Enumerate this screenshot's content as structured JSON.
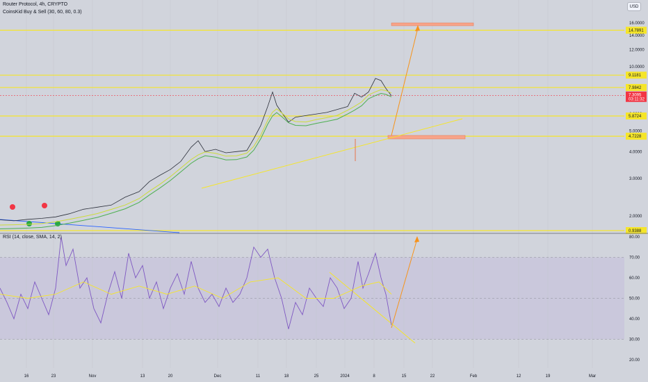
{
  "header": {
    "symbol_line": "Router Protocol, 4h, CRYPTO",
    "indicator_line": "CoinsKid Buy & Sell (30, 60, 80, 0.3)",
    "currency": "USD"
  },
  "colors": {
    "background": "#d1d4dc",
    "level_line": "#f5e52a",
    "level_tag_bg": "#f5e52a",
    "price_tag_bg": "#f23645",
    "rsi_line": "#7e57c2",
    "rsi_ma": "#f5e52a",
    "rsi_band": "#c7c3dc",
    "arrow": "#f7931a",
    "target_box": "#f7a48a",
    "ema_green": "#4caf50",
    "ema_light": "#cddc39",
    "trend_blue": "#2962ff",
    "sell_dot": "#f23645",
    "buy_dot": "#26a646"
  },
  "chart_data": [
    {
      "type": "line",
      "title": "",
      "subtitle": "",
      "xlabel": "",
      "ylabel": "",
      "x_ticks": [
        "16",
        "23",
        "Nov",
        "13",
        "20",
        "Dec",
        "11",
        "18",
        "25",
        "2024",
        "8",
        "15",
        "22",
        "Feb",
        "12",
        "19",
        "Mar"
      ],
      "y_scale": "log",
      "y_ticks": [
        2.0,
        3.0,
        4.0,
        5.0,
        6.0,
        7.0,
        8.0,
        10.0,
        12.0,
        14.0,
        16.0
      ],
      "y_tick_labels": [
        "2.0000",
        "3.0000",
        "4.0000",
        "5.0000",
        "6.0000",
        "7.0000",
        "8.0000",
        "10.0000",
        "12.0000",
        "14.0000",
        "16.0000"
      ],
      "levels": [
        {
          "value": 14.7891,
          "label": "14.7891"
        },
        {
          "value": 9.1181,
          "label": "9.1181"
        },
        {
          "value": 7.9842,
          "label": "7.9842"
        },
        {
          "value": 5.8724,
          "label": "5.8724"
        },
        {
          "value": 4.7228,
          "label": "4.7228"
        },
        {
          "value": 0.9388,
          "label": "0.9388"
        }
      ],
      "last_price": {
        "value": 7.3095,
        "label": "7.3095",
        "countdown": "03:11:32"
      },
      "series": [
        {
          "values": [
            [
              0,
              1.92
            ],
            [
              20,
              1.9
            ],
            [
              40,
              1.93
            ],
            [
              60,
              1.95
            ],
            [
              80,
              1.98
            ],
            [
              100,
              2.05
            ],
            [
              120,
              2.15
            ],
            [
              140,
              2.2
            ],
            [
              160,
              2.25
            ],
            [
              180,
              2.45
            ],
            [
              200,
              2.6
            ],
            [
              215,
              2.9
            ],
            [
              230,
              3.1
            ],
            [
              245,
              3.3
            ],
            [
              260,
              3.6
            ],
            [
              275,
              4.2
            ],
            [
              285,
              4.5
            ],
            [
              295,
              4.0
            ],
            [
              310,
              4.1
            ],
            [
              325,
              3.95
            ],
            [
              340,
              4.0
            ],
            [
              355,
              4.05
            ],
            [
              365,
              4.6
            ],
            [
              375,
              5.3
            ],
            [
              385,
              6.5
            ],
            [
              392,
              7.6
            ],
            [
              398,
              6.6
            ],
            [
              405,
              6.1
            ],
            [
              415,
              5.5
            ],
            [
              425,
              5.8
            ],
            [
              440,
              5.9
            ],
            [
              455,
              6.0
            ],
            [
              470,
              6.1
            ],
            [
              485,
              6.3
            ],
            [
              500,
              6.5
            ],
            [
              510,
              7.5
            ],
            [
              520,
              7.2
            ],
            [
              530,
              7.6
            ],
            [
              540,
              8.8
            ],
            [
              548,
              8.6
            ],
            [
              555,
              7.9
            ],
            [
              563,
              7.3
            ]
          ]
        }
      ]
    },
    {
      "type": "line",
      "title": "RSI (14, close, SMA, 14, 2)",
      "ylim": [
        15,
        82
      ],
      "y_ticks": [
        20.0,
        30.0,
        40.0,
        50.0,
        60.0,
        70.0,
        80.0
      ],
      "y_tick_labels": [
        "20.00",
        "30.00",
        "40.00",
        "50.00",
        "60.00",
        "70.00",
        "80.00"
      ],
      "bands": [
        30,
        50,
        70
      ],
      "series": [
        {
          "values": [
            [
              0,
              55
            ],
            [
              10,
              48
            ],
            [
              20,
              40
            ],
            [
              30,
              52
            ],
            [
              40,
              45
            ],
            [
              50,
              58
            ],
            [
              60,
              50
            ],
            [
              70,
              42
            ],
            [
              80,
              55
            ],
            [
              88,
              80
            ],
            [
              95,
              66
            ],
            [
              105,
              74
            ],
            [
              115,
              55
            ],
            [
              125,
              60
            ],
            [
              135,
              45
            ],
            [
              145,
              38
            ],
            [
              155,
              52
            ],
            [
              165,
              63
            ],
            [
              175,
              50
            ],
            [
              185,
              72
            ],
            [
              195,
              60
            ],
            [
              205,
              66
            ],
            [
              215,
              50
            ],
            [
              225,
              58
            ],
            [
              235,
              45
            ],
            [
              245,
              55
            ],
            [
              255,
              62
            ],
            [
              265,
              52
            ],
            [
              275,
              68
            ],
            [
              285,
              55
            ],
            [
              295,
              48
            ],
            [
              305,
              52
            ],
            [
              315,
              46
            ],
            [
              325,
              55
            ],
            [
              335,
              48
            ],
            [
              345,
              52
            ],
            [
              355,
              60
            ],
            [
              365,
              75
            ],
            [
              375,
              70
            ],
            [
              385,
              74
            ],
            [
              395,
              60
            ],
            [
              405,
              50
            ],
            [
              415,
              35
            ],
            [
              425,
              48
            ],
            [
              435,
              42
            ],
            [
              445,
              55
            ],
            [
              455,
              50
            ],
            [
              465,
              46
            ],
            [
              475,
              60
            ],
            [
              485,
              55
            ],
            [
              495,
              45
            ],
            [
              505,
              50
            ],
            [
              515,
              68
            ],
            [
              522,
              55
            ],
            [
              530,
              62
            ],
            [
              540,
              72
            ],
            [
              548,
              60
            ],
            [
              555,
              52
            ],
            [
              563,
              37
            ]
          ]
        },
        {
          "values": [
            [
              0,
              52
            ],
            [
              40,
              50
            ],
            [
              80,
              52
            ],
            [
              120,
              58
            ],
            [
              160,
              52
            ],
            [
              200,
              56
            ],
            [
              240,
              52
            ],
            [
              280,
              56
            ],
            [
              320,
              50
            ],
            [
              360,
              58
            ],
            [
              400,
              60
            ],
            [
              440,
              50
            ],
            [
              480,
              50
            ],
            [
              520,
              56
            ],
            [
              545,
              58
            ],
            [
              563,
              52
            ]
          ]
        }
      ]
    }
  ]
}
